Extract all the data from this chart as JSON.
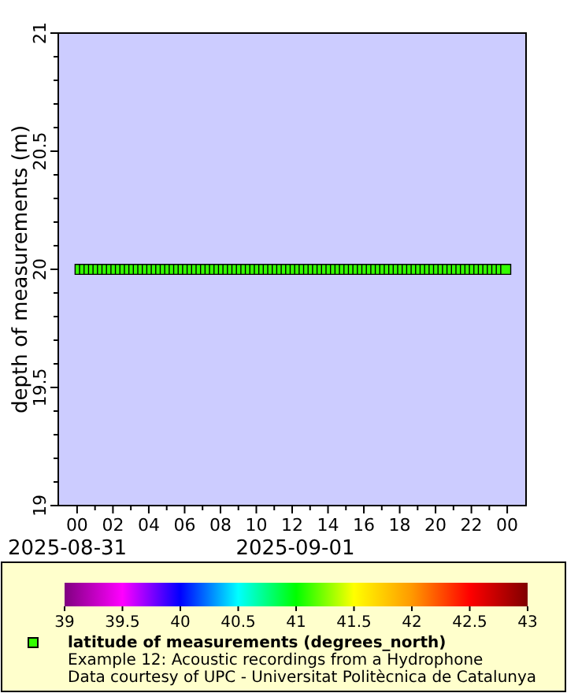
{
  "chart_data": {
    "type": "scatter",
    "ylabel": "depth of measurements (m)",
    "clabel": "latitude of measurements (degrees_north)",
    "annotations": [
      "2025-08-31",
      "2025-09-01",
      "Example 12: Acoustic recordings from a Hydrophone",
      "Data courtesy of UPC - Universitat Politècnica de Catalunya"
    ],
    "xlim": [
      "2025-08-30T22:57",
      "2025-09-01T01:03"
    ],
    "xticks": [
      {
        "value": "2025-08-31T00:00",
        "label": "00"
      },
      {
        "value": "2025-08-31T01:00",
        "label": null
      },
      {
        "value": "2025-08-31T02:00",
        "label": "02"
      },
      {
        "value": "2025-08-31T03:00",
        "label": null
      },
      {
        "value": "2025-08-31T04:00",
        "label": "04"
      },
      {
        "value": "2025-08-31T05:00",
        "label": null
      },
      {
        "value": "2025-08-31T06:00",
        "label": "06"
      },
      {
        "value": "2025-08-31T07:00",
        "label": null
      },
      {
        "value": "2025-08-31T08:00",
        "label": "08"
      },
      {
        "value": "2025-08-31T09:00",
        "label": null
      },
      {
        "value": "2025-08-31T10:00",
        "label": "10"
      },
      {
        "value": "2025-08-31T11:00",
        "label": null
      },
      {
        "value": "2025-08-31T12:00",
        "label": "12"
      },
      {
        "value": "2025-08-31T13:00",
        "label": null
      },
      {
        "value": "2025-08-31T14:00",
        "label": "14"
      },
      {
        "value": "2025-08-31T15:00",
        "label": null
      },
      {
        "value": "2025-08-31T16:00",
        "label": "16"
      },
      {
        "value": "2025-08-31T17:00",
        "label": null
      },
      {
        "value": "2025-08-31T18:00",
        "label": "18"
      },
      {
        "value": "2025-08-31T19:00",
        "label": null
      },
      {
        "value": "2025-08-31T20:00",
        "label": "20"
      },
      {
        "value": "2025-08-31T21:00",
        "label": null
      },
      {
        "value": "2025-08-31T22:00",
        "label": "22"
      },
      {
        "value": "2025-08-31T23:00",
        "label": null
      },
      {
        "value": "2025-09-01T00:00",
        "label": "00"
      }
    ],
    "ylim": [
      19,
      21
    ],
    "yticks": [
      19,
      {
        "value": 19.1,
        "label": null
      },
      {
        "value": 19.2,
        "label": null
      },
      {
        "value": 19.3,
        "label": null
      },
      {
        "value": 19.4,
        "label": null
      },
      19.5,
      {
        "value": 19.6,
        "label": null
      },
      {
        "value": 19.7,
        "label": null
      },
      {
        "value": 19.8,
        "label": null
      },
      {
        "value": 19.9,
        "label": null
      },
      20,
      {
        "value": 20.1,
        "label": null
      },
      {
        "value": 20.2,
        "label": null
      },
      {
        "value": 20.3,
        "label": null
      },
      {
        "value": 20.4,
        "label": null
      },
      20.5,
      {
        "value": 20.6,
        "label": null
      },
      {
        "value": 20.7,
        "label": null
      },
      {
        "value": 20.8,
        "label": null
      },
      {
        "value": 20.9,
        "label": null
      },
      21
    ],
    "clim": [
      39,
      43
    ],
    "cticks": [
      39,
      39.5,
      40,
      40.5,
      41,
      41.5,
      42,
      42.5,
      43
    ],
    "marker": "square",
    "grid": false,
    "x": [
      "2025-08-31T00:10",
      "2025-08-31T00:25",
      "2025-08-31T00:40",
      "2025-08-31T00:55",
      "2025-08-31T01:10",
      "2025-08-31T01:25",
      "2025-08-31T01:40",
      "2025-08-31T01:55",
      "2025-08-31T02:10",
      "2025-08-31T02:25",
      "2025-08-31T02:40",
      "2025-08-31T02:55",
      "2025-08-31T03:10",
      "2025-08-31T03:25",
      "2025-08-31T03:40",
      "2025-08-31T03:55",
      "2025-08-31T04:10",
      "2025-08-31T04:25",
      "2025-08-31T04:40",
      "2025-08-31T04:55",
      "2025-08-31T05:10",
      "2025-08-31T05:25",
      "2025-08-31T05:40",
      "2025-08-31T05:55",
      "2025-08-31T06:10",
      "2025-08-31T06:25",
      "2025-08-31T06:40",
      "2025-08-31T06:55",
      "2025-08-31T07:10",
      "2025-08-31T07:25",
      "2025-08-31T07:40",
      "2025-08-31T07:55",
      "2025-08-31T08:10",
      "2025-08-31T08:25",
      "2025-08-31T08:40",
      "2025-08-31T08:55",
      "2025-08-31T09:10",
      "2025-08-31T09:25",
      "2025-08-31T09:40",
      "2025-08-31T09:55",
      "2025-08-31T10:10",
      "2025-08-31T10:25",
      "2025-08-31T10:40",
      "2025-08-31T10:55",
      "2025-08-31T11:10",
      "2025-08-31T11:25",
      "2025-08-31T11:40",
      "2025-08-31T11:55",
      "2025-08-31T12:10",
      "2025-08-31T12:25",
      "2025-08-31T12:40",
      "2025-08-31T12:55",
      "2025-08-31T13:10",
      "2025-08-31T13:25",
      "2025-08-31T13:40",
      "2025-08-31T13:55",
      "2025-08-31T14:10",
      "2025-08-31T14:25",
      "2025-08-31T14:40",
      "2025-08-31T14:55",
      "2025-08-31T15:10",
      "2025-08-31T15:25",
      "2025-08-31T15:40",
      "2025-08-31T15:55",
      "2025-08-31T16:10",
      "2025-08-31T16:25",
      "2025-08-31T16:40",
      "2025-08-31T16:55",
      "2025-08-31T17:10",
      "2025-08-31T17:25",
      "2025-08-31T17:40",
      "2025-08-31T17:55",
      "2025-08-31T18:10",
      "2025-08-31T18:25",
      "2025-08-31T18:40",
      "2025-08-31T18:55",
      "2025-08-31T19:10",
      "2025-08-31T19:25",
      "2025-08-31T19:40",
      "2025-08-31T19:55",
      "2025-08-31T20:10",
      "2025-08-31T20:25",
      "2025-08-31T20:40",
      "2025-08-31T20:55",
      "2025-08-31T21:10",
      "2025-08-31T21:25",
      "2025-08-31T21:40",
      "2025-08-31T21:55",
      "2025-08-31T22:10",
      "2025-08-31T22:25",
      "2025-08-31T22:40",
      "2025-08-31T22:55",
      "2025-08-31T23:10",
      "2025-08-31T23:25",
      "2025-08-31T23:40",
      "2025-08-31T23:55"
    ],
    "values": [
      20,
      20,
      20,
      20,
      20,
      20,
      20,
      20,
      20,
      20,
      20,
      20,
      20,
      20,
      20,
      20,
      20,
      20,
      20,
      20,
      20,
      20,
      20,
      20,
      20,
      20,
      20,
      20,
      20,
      20,
      20,
      20,
      20,
      20,
      20,
      20,
      20,
      20,
      20,
      20,
      20,
      20,
      20,
      20,
      20,
      20,
      20,
      20,
      20,
      20,
      20,
      20,
      20,
      20,
      20,
      20,
      20,
      20,
      20,
      20,
      20,
      20,
      20,
      20,
      20,
      20,
      20,
      20,
      20,
      20,
      20,
      20,
      20,
      20,
      20,
      20,
      20,
      20,
      20,
      20,
      20,
      20,
      20,
      20,
      20,
      20,
      20,
      20,
      20,
      20,
      20,
      20,
      20,
      20,
      20,
      20
    ],
    "cvalues": [
      41.1,
      41.1,
      41.1,
      41.1,
      41.1,
      41.1,
      41.1,
      41.1,
      41.1,
      41.1,
      41.1,
      41.1,
      41.1,
      41.1,
      41.1,
      41.1,
      41.1,
      41.1,
      41.1,
      41.1,
      41.1,
      41.1,
      41.1,
      41.1,
      41.1,
      41.1,
      41.1,
      41.1,
      41.1,
      41.1,
      41.1,
      41.1,
      41.1,
      41.1,
      41.1,
      41.1,
      41.1,
      41.1,
      41.1,
      41.1,
      41.1,
      41.1,
      41.1,
      41.1,
      41.1,
      41.1,
      41.1,
      41.1,
      41.1,
      41.1,
      41.1,
      41.1,
      41.1,
      41.1,
      41.1,
      41.1,
      41.1,
      41.1,
      41.1,
      41.1,
      41.1,
      41.1,
      41.1,
      41.1,
      41.1,
      41.1,
      41.1,
      41.1,
      41.1,
      41.1,
      41.1,
      41.1,
      41.1,
      41.1,
      41.1,
      41.1,
      41.1,
      41.1,
      41.1,
      41.1,
      41.1,
      41.1,
      41.1,
      41.1,
      41.1,
      41.1,
      41.1,
      41.1,
      41.1,
      41.1,
      41.1,
      41.1,
      41.1,
      41.1,
      41.1,
      41.1
    ]
  }
}
